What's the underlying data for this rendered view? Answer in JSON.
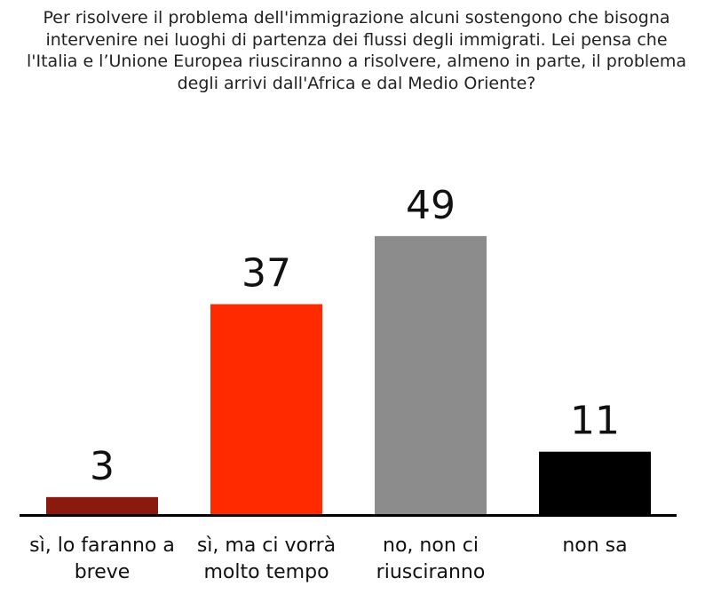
{
  "chart_data": {
    "type": "bar",
    "title": "Per risolvere il problema dell'immigrazione alcuni sostengono che bisogna intervenire nei luoghi di partenza dei flussi degli immigrati. Lei pensa che l'Italia e l’Unione Europea riusciranno a risolvere, almeno in parte, il problema degli arrivi dall'Africa e dal Medio Oriente?",
    "categories": [
      "sì, lo faranno a breve",
      "sì, ma ci vorrà molto tempo",
      "no, non ci riusciranno",
      "non sa"
    ],
    "values": [
      3,
      37,
      49,
      11
    ],
    "colors": [
      "#8b1a0e",
      "#ff2a00",
      "#8c8c8c",
      "#000000"
    ]
  }
}
